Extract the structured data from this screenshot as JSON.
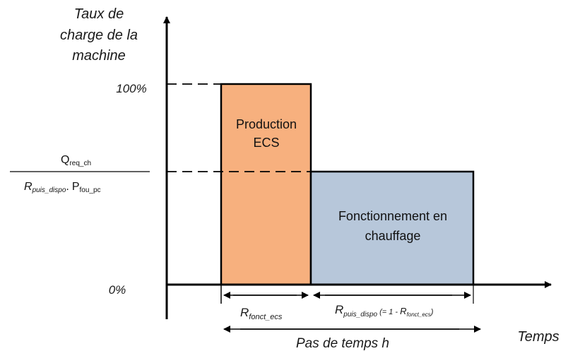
{
  "y_axis_title": [
    "Taux de",
    "charge de la",
    "machine"
  ],
  "x_axis_title": "Temps",
  "ticks": {
    "top": "100%",
    "bottom": "0%"
  },
  "fraction": {
    "numerator": {
      "main": "Q",
      "sub": "req_ch"
    },
    "denominator": {
      "r_main": "R",
      "r_sub": "puis_dispo",
      "dot": ".",
      "p_main": "P",
      "p_sub": "fou_pc"
    }
  },
  "blocks": {
    "ecs": {
      "line1": "Production",
      "line2": "ECS",
      "color": "#f7b07e",
      "level": 1.0
    },
    "chauffage": {
      "line1": "Fonctionnement en",
      "line2": "chauffage",
      "color": "#b7c7da"
    }
  },
  "dims": {
    "r_fonct_ecs": {
      "main": "R",
      "sub": "fonct_ecs"
    },
    "r_puis_dispo": {
      "main": "R",
      "sub": "puis_dispo",
      "paren_open": "(= 1 - ",
      "r2_main": "R",
      "r2_sub": "fonct_ecs",
      "paren_close": ")"
    },
    "pas_de_temps": "Pas de temps h"
  }
}
